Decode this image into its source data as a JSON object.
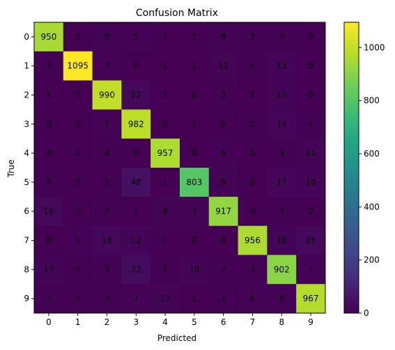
{
  "chart_data": {
    "type": "heatmap",
    "title": "Confusion Matrix",
    "xlabel": "Predicted",
    "ylabel": "True",
    "x_categories": [
      "0",
      "1",
      "2",
      "3",
      "4",
      "5",
      "6",
      "7",
      "8",
      "9"
    ],
    "y_categories": [
      "0",
      "1",
      "2",
      "3",
      "4",
      "5",
      "6",
      "7",
      "8",
      "9"
    ],
    "values": [
      [
        950,
        1,
        8,
        5,
        1,
        1,
        8,
        2,
        4,
        0
      ],
      [
        3,
        1095,
        7,
        0,
        1,
        1,
        11,
        4,
        13,
        0
      ],
      [
        1,
        1,
        990,
        22,
        1,
        0,
        3,
        1,
        13,
        0
      ],
      [
        0,
        0,
        7,
        982,
        0,
        1,
        0,
        2,
        14,
        4
      ],
      [
        0,
        1,
        4,
        0,
        957,
        0,
        6,
        0,
        3,
        11
      ],
      [
        4,
        0,
        1,
        48,
        1,
        803,
        8,
        0,
        17,
        10
      ],
      [
        18,
        1,
        3,
        1,
        8,
        7,
        917,
        0,
        3,
        0
      ],
      [
        0,
        5,
        18,
        12,
        1,
        0,
        0,
        956,
        10,
        26
      ],
      [
        13,
        0,
        3,
        32,
        2,
        10,
        2,
        3,
        902,
        7
      ],
      [
        3,
        2,
        3,
        7,
        13,
        1,
        1,
        6,
        6,
        967
      ]
    ],
    "colormap": "viridis",
    "value_range": [
      0,
      1095
    ],
    "colorbar_ticks": [
      0,
      200,
      400,
      600,
      800,
      1000
    ],
    "colorbar_tick_labels": [
      "0",
      "200",
      "400",
      "600",
      "800",
      "1000"
    ],
    "grid": false,
    "legend": "colorbar-right"
  }
}
